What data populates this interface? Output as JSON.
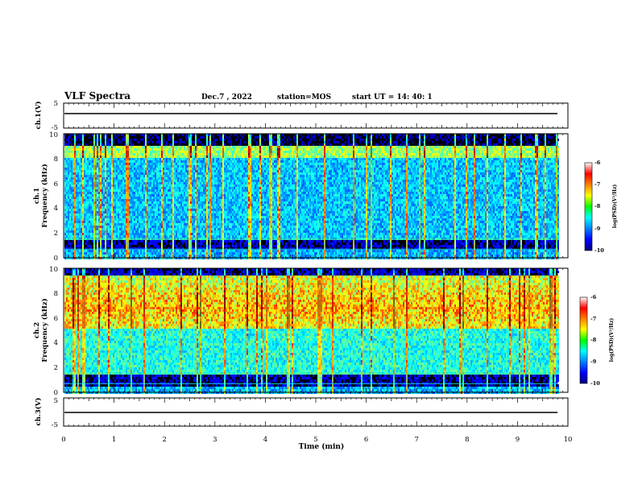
{
  "header": {
    "title": "VLF Spectra",
    "date": "Dec.7 , 2022",
    "station": "station=MOS",
    "start": "start  UT =   14: 40: 1"
  },
  "chart_data": [
    {
      "type": "line",
      "name": "panel-ch1-waveform",
      "ylabel": "ch.1(V)",
      "ylim": [
        -5,
        5
      ],
      "yticks": [
        "5",
        "-5"
      ],
      "xlim": [
        0,
        10
      ],
      "series": [
        {
          "values": [
            -1,
            -1
          ]
        }
      ]
    },
    {
      "type": "heatmap",
      "name": "panel-ch1-spectrogram",
      "ylabel_top": "ch.1",
      "ylabel": "Frequency (kHz)",
      "ylim": [
        0,
        10
      ],
      "yticks": [
        "0",
        "2",
        "4",
        "6",
        "8",
        "10"
      ],
      "xlim": [
        0,
        10
      ],
      "data_end_min": 9.8,
      "colorbar": {
        "label": "log(PSD)(V²/Hz)",
        "range": [
          -10,
          -6
        ],
        "ticks": [
          "-6",
          "-7",
          "-8",
          "-9",
          "-10"
        ]
      }
    },
    {
      "type": "heatmap",
      "name": "panel-ch2-spectrogram",
      "ylabel_top": "ch.2",
      "ylabel": "Frequency (kHz)",
      "ylim": [
        0,
        10
      ],
      "yticks": [
        "0",
        "2",
        "4",
        "6",
        "8",
        "10"
      ],
      "xlim": [
        0,
        10
      ],
      "data_end_min": 9.8,
      "colorbar": {
        "label": "log(PSD)(V²/Hz)",
        "range": [
          -10,
          -6
        ],
        "ticks": [
          "-6",
          "-7",
          "-8",
          "-9",
          "-10"
        ]
      }
    },
    {
      "type": "line",
      "name": "panel-ch3-waveform",
      "ylabel": "ch.3(V)",
      "ylim": [
        -5,
        5
      ],
      "yticks": [
        "5",
        "-5"
      ],
      "xlim": [
        0,
        10
      ],
      "series": [
        {
          "values": [
            -1,
            -1
          ]
        }
      ]
    }
  ],
  "xaxis": {
    "label": "Time  (min)",
    "ticks": [
      "0",
      "1",
      "2",
      "3",
      "4",
      "5",
      "6",
      "7",
      "8",
      "9",
      "10"
    ]
  },
  "colors": {
    "background": "#000000",
    "line": "#000000"
  }
}
